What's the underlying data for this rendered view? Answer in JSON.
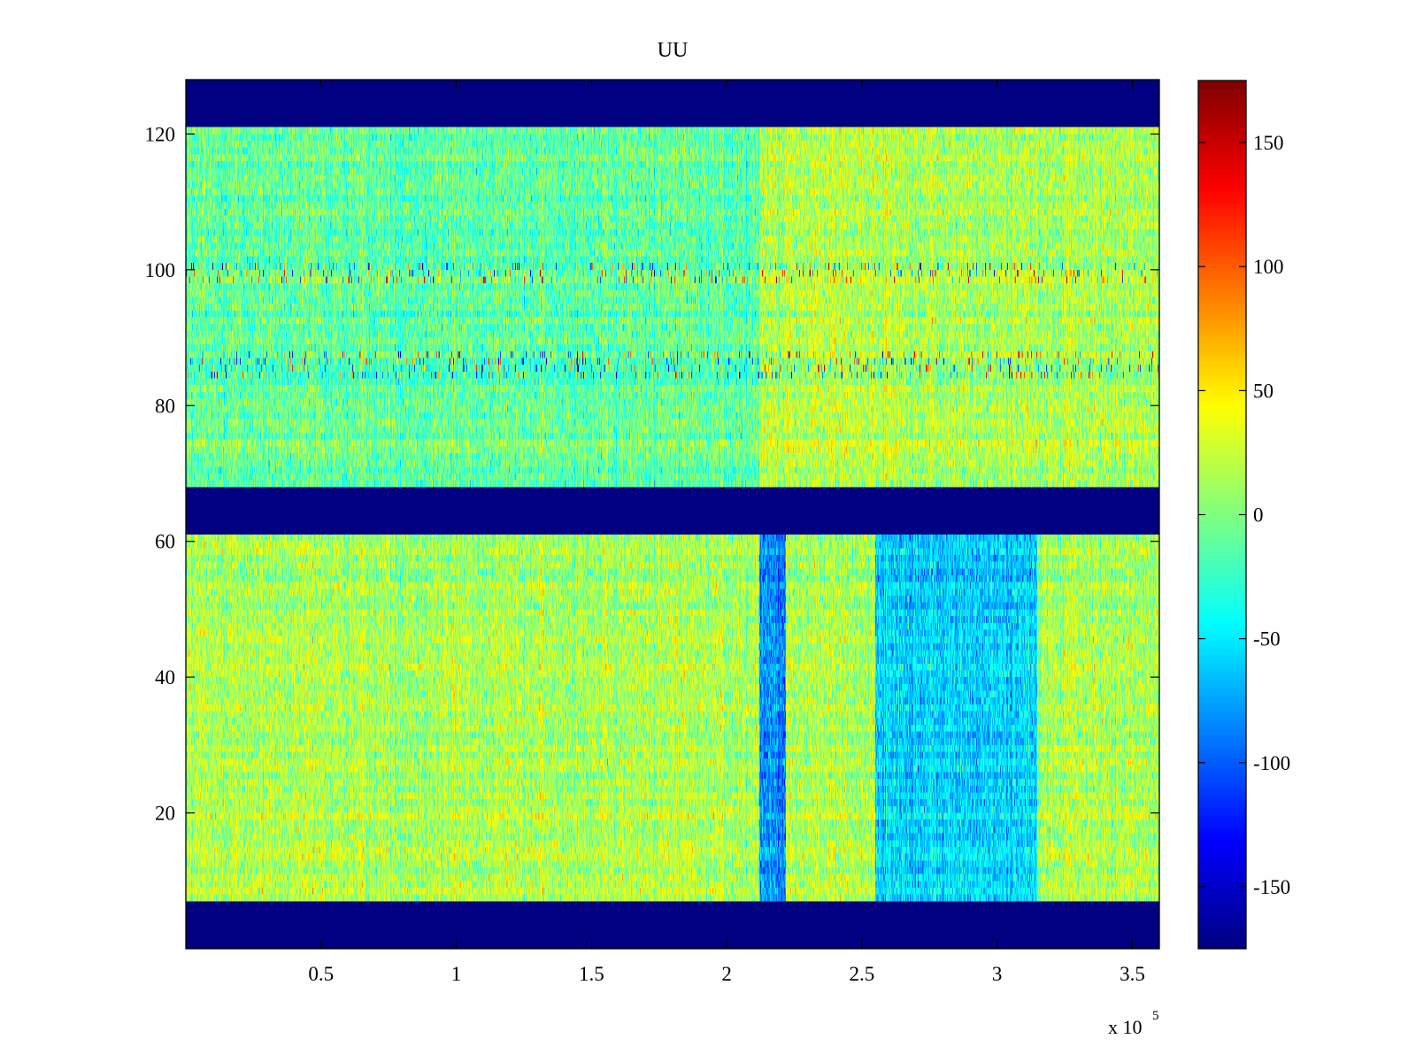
{
  "chart_data": {
    "type": "heatmap",
    "title": "UU",
    "xlabel": "",
    "ylabel": "",
    "x_exponent_label": "x 10",
    "x_exponent_power": "5",
    "xlim": [
      0,
      3.6
    ],
    "ylim": [
      0,
      128
    ],
    "x_ticks": [
      0.5,
      1,
      1.5,
      2,
      2.5,
      3,
      3.5
    ],
    "x_tick_labels": [
      "0.5",
      "1",
      "1.5",
      "2",
      "2.5",
      "3",
      "3.5"
    ],
    "y_ticks": [
      20,
      40,
      60,
      80,
      100,
      120
    ],
    "y_tick_labels": [
      "20",
      "40",
      "60",
      "80",
      "100",
      "120"
    ],
    "colormap": "jet",
    "clim": [
      -175,
      175
    ],
    "colorbar_ticks": [
      150,
      100,
      50,
      0,
      -50,
      -100,
      -150
    ],
    "colorbar_tick_labels": [
      "150",
      "100",
      "50",
      "0",
      "-50",
      "-100",
      "-150"
    ],
    "masked_bands": [
      {
        "y_range": [
          0,
          7
        ],
        "value": -175
      },
      {
        "y_range": [
          61,
          68
        ],
        "value": -175
      },
      {
        "y_range": [
          121,
          128
        ],
        "value": -175
      }
    ],
    "regions": [
      {
        "y_range": [
          68,
          121
        ],
        "typical_value": -10,
        "note": "upper block, mostly green/cyan"
      },
      {
        "y_range": [
          7,
          61
        ],
        "typical_value": 15,
        "note": "lower block, mostly green/yellow"
      },
      {
        "x_range": [
          2.12,
          2.22
        ],
        "y_range": [
          7,
          61
        ],
        "typical_value": -80
      },
      {
        "x_range": [
          2.55,
          3.15
        ],
        "y_range": [
          7,
          61
        ],
        "typical_value": -60
      },
      {
        "x_range": [
          2.12,
          2.55
        ],
        "y_range": [
          68,
          121
        ],
        "typical_value": 20
      },
      {
        "x_range": [
          2.55,
          3.6
        ],
        "y_range": [
          68,
          121
        ],
        "typical_value": 15
      }
    ],
    "notable_rows": [
      {
        "y": 99.5,
        "note": "row of strong positive/negative spikes"
      },
      {
        "y": 86,
        "note": "periodic vertical red streaks"
      }
    ],
    "grid": false
  }
}
